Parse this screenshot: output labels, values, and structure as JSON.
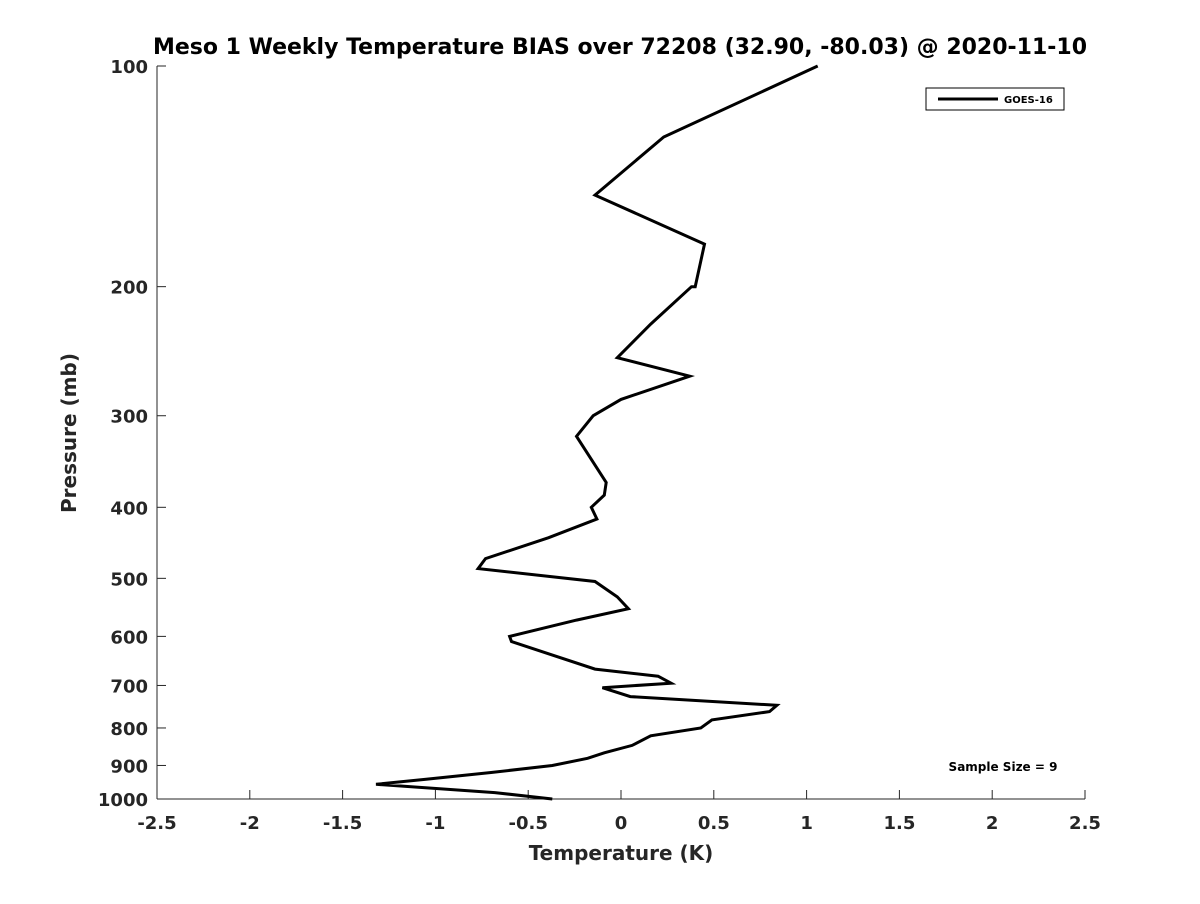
{
  "chart_data": {
    "type": "line",
    "title": "Meso 1 Weekly Temperature BIAS over 72208 (32.90, -80.03) @ 2020-11-10",
    "xlabel": "Temperature (K)",
    "ylabel": "Pressure (mb)",
    "xlim": [
      -2.5,
      2.5
    ],
    "ylim": [
      100,
      1000
    ],
    "y_scale": "log",
    "y_reversed": true,
    "x_ticks": [
      -2.5,
      -2,
      -1.5,
      -1,
      -0.5,
      0,
      0.5,
      1,
      1.5,
      2,
      2.5
    ],
    "x_tick_labels": [
      "-2.5",
      "-2",
      "-1.5",
      "-1",
      "-0.5",
      "0",
      "0.5",
      "1",
      "1.5",
      "2",
      "2.5"
    ],
    "y_ticks": [
      100,
      200,
      300,
      400,
      500,
      600,
      700,
      800,
      900,
      1000
    ],
    "y_tick_labels": [
      "100",
      "200",
      "300",
      "400",
      "500",
      "600",
      "700",
      "800",
      "900",
      "1000"
    ],
    "grid": false,
    "legend": {
      "position": "top-right",
      "entries": [
        "GOES-16"
      ]
    },
    "annotations": [
      "Sample Size = 9"
    ],
    "series": [
      {
        "name": "GOES-16",
        "color": "#000000",
        "points": [
          {
            "x": 1.06,
            "p": 100
          },
          {
            "x": 0.23,
            "p": 125
          },
          {
            "x": -0.14,
            "p": 150
          },
          {
            "x": 0.45,
            "p": 175
          },
          {
            "x": 0.4,
            "p": 200
          },
          {
            "x": 0.38,
            "p": 200
          },
          {
            "x": 0.16,
            "p": 225
          },
          {
            "x": -0.02,
            "p": 250
          },
          {
            "x": 0.37,
            "p": 265
          },
          {
            "x": 0.0,
            "p": 285
          },
          {
            "x": -0.15,
            "p": 300
          },
          {
            "x": -0.24,
            "p": 320
          },
          {
            "x": -0.08,
            "p": 370
          },
          {
            "x": -0.09,
            "p": 385
          },
          {
            "x": -0.16,
            "p": 400
          },
          {
            "x": -0.13,
            "p": 415
          },
          {
            "x": -0.39,
            "p": 440
          },
          {
            "x": -0.73,
            "p": 470
          },
          {
            "x": -0.77,
            "p": 485
          },
          {
            "x": -0.14,
            "p": 505
          },
          {
            "x": -0.02,
            "p": 530
          },
          {
            "x": 0.04,
            "p": 550
          },
          {
            "x": -0.24,
            "p": 570
          },
          {
            "x": -0.6,
            "p": 600
          },
          {
            "x": -0.59,
            "p": 610
          },
          {
            "x": -0.38,
            "p": 635
          },
          {
            "x": -0.14,
            "p": 665
          },
          {
            "x": 0.2,
            "p": 680
          },
          {
            "x": 0.27,
            "p": 695
          },
          {
            "x": -0.1,
            "p": 705
          },
          {
            "x": 0.05,
            "p": 725
          },
          {
            "x": 0.84,
            "p": 745
          },
          {
            "x": 0.8,
            "p": 760
          },
          {
            "x": 0.49,
            "p": 780
          },
          {
            "x": 0.43,
            "p": 800
          },
          {
            "x": 0.16,
            "p": 820
          },
          {
            "x": 0.06,
            "p": 845
          },
          {
            "x": -0.09,
            "p": 865
          },
          {
            "x": -0.18,
            "p": 880
          },
          {
            "x": -0.37,
            "p": 900
          },
          {
            "x": -0.7,
            "p": 920
          },
          {
            "x": -1.05,
            "p": 940
          },
          {
            "x": -1.32,
            "p": 955
          },
          {
            "x": -0.68,
            "p": 980
          },
          {
            "x": -0.37,
            "p": 1000
          }
        ]
      }
    ]
  }
}
